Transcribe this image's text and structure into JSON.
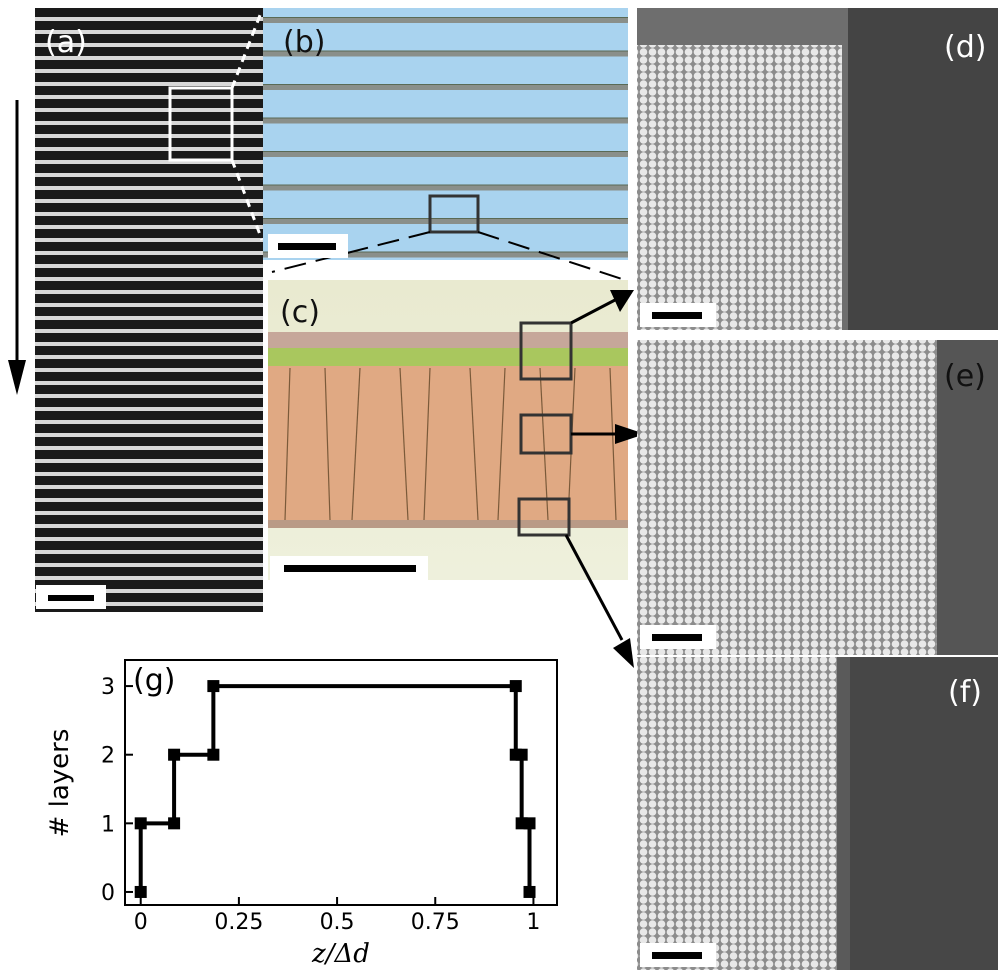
{
  "panels": {
    "labels": [
      "(a)",
      "(b)",
      "(c)",
      "(d)",
      "(e)",
      "(f)"
    ]
  },
  "chart_data": {
    "type": "line",
    "panel_label": "(g)",
    "x_label": "z/Δd",
    "y_label": "# layers",
    "x": [
      0,
      0,
      0.085,
      0.085,
      0.185,
      0.185,
      0.955,
      0.955,
      0.97,
      0.97,
      0.99,
      0.99
    ],
    "values": [
      0,
      1,
      1,
      2,
      2,
      3,
      3,
      2,
      2,
      1,
      1,
      0
    ],
    "color": "#000000",
    "marker": "square",
    "xlim": [
      -0.04,
      1.06
    ],
    "ylim": [
      -0.19,
      3.38
    ],
    "xticks": [
      0,
      0.25,
      0.5,
      0.75,
      1
    ],
    "yticks": [
      0,
      1,
      2,
      3
    ],
    "grid": false
  }
}
